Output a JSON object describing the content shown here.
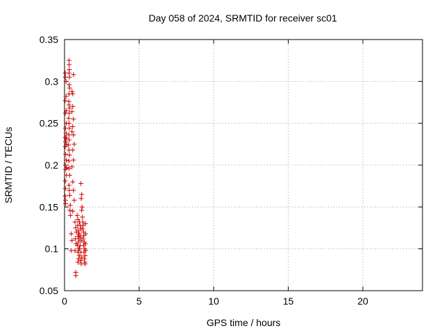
{
  "chart_data": {
    "type": "scatter",
    "title": "Day 058 of 2024, SRMTID for receiver sc01",
    "xlabel": "GPS time / hours",
    "ylabel": "SRMTID / TECUs",
    "xlim": [
      0,
      24
    ],
    "ylim": [
      0.05,
      0.35
    ],
    "xticks": [
      0,
      5,
      10,
      15,
      20
    ],
    "yticks": [
      0.05,
      0.1,
      0.15,
      0.2,
      0.25,
      0.3,
      0.35
    ],
    "grid": true,
    "marker": "+",
    "color": "#cc0000",
    "points": [
      [
        0.05,
        0.31
      ],
      [
        0.06,
        0.305
      ],
      [
        0.04,
        0.277
      ],
      [
        0.05,
        0.262
      ],
      [
        0.06,
        0.244
      ],
      [
        0.05,
        0.233
      ],
      [
        0.07,
        0.228
      ],
      [
        0.05,
        0.222
      ],
      [
        0.08,
        0.213
      ],
      [
        0.06,
        0.2
      ],
      [
        0.08,
        0.195
      ],
      [
        0.05,
        0.181
      ],
      [
        0.06,
        0.172
      ],
      [
        0.04,
        0.163
      ],
      [
        0.06,
        0.158
      ],
      [
        0.07,
        0.154
      ],
      [
        0.1,
        0.3
      ],
      [
        0.1,
        0.282
      ],
      [
        0.11,
        0.265
      ],
      [
        0.12,
        0.25
      ],
      [
        0.11,
        0.238
      ],
      [
        0.12,
        0.232
      ],
      [
        0.13,
        0.225
      ],
      [
        0.12,
        0.206
      ],
      [
        0.14,
        0.197
      ],
      [
        0.13,
        0.188
      ],
      [
        0.3,
        0.325
      ],
      [
        0.31,
        0.32
      ],
      [
        0.32,
        0.314
      ],
      [
        0.3,
        0.31
      ],
      [
        0.33,
        0.305
      ],
      [
        0.31,
        0.296
      ],
      [
        0.34,
        0.292
      ],
      [
        0.3,
        0.285
      ],
      [
        0.29,
        0.276
      ],
      [
        0.3,
        0.272
      ],
      [
        0.33,
        0.268
      ],
      [
        0.31,
        0.262
      ],
      [
        0.28,
        0.256
      ],
      [
        0.3,
        0.25
      ],
      [
        0.32,
        0.244
      ],
      [
        0.29,
        0.236
      ],
      [
        0.31,
        0.23
      ],
      [
        0.27,
        0.224
      ],
      [
        0.3,
        0.218
      ],
      [
        0.33,
        0.212
      ],
      [
        0.29,
        0.205
      ],
      [
        0.31,
        0.196
      ],
      [
        0.34,
        0.188
      ],
      [
        0.3,
        0.176
      ],
      [
        0.32,
        0.17
      ],
      [
        0.35,
        0.164
      ],
      [
        0.38,
        0.152
      ],
      [
        0.36,
        0.146
      ],
      [
        0.4,
        0.14
      ],
      [
        0.5,
        0.288
      ],
      [
        0.55,
        0.285
      ],
      [
        0.6,
        0.308
      ],
      [
        0.55,
        0.27
      ],
      [
        0.5,
        0.264
      ],
      [
        0.6,
        0.255
      ],
      [
        0.55,
        0.246
      ],
      [
        0.5,
        0.24
      ],
      [
        0.6,
        0.236
      ],
      [
        0.65,
        0.225
      ],
      [
        0.55,
        0.218
      ],
      [
        0.6,
        0.206
      ],
      [
        0.5,
        0.198
      ],
      [
        0.55,
        0.18
      ],
      [
        0.6,
        0.17
      ],
      [
        0.65,
        0.158
      ],
      [
        0.55,
        0.145
      ],
      [
        0.45,
        0.118
      ],
      [
        0.5,
        0.11
      ],
      [
        0.45,
        0.098
      ],
      [
        0.7,
        0.132
      ],
      [
        0.75,
        0.125
      ],
      [
        0.8,
        0.12
      ],
      [
        0.72,
        0.112
      ],
      [
        0.78,
        0.106
      ],
      [
        0.7,
        0.098
      ],
      [
        0.75,
        0.072
      ],
      [
        0.76,
        0.068
      ],
      [
        0.85,
        0.14
      ],
      [
        0.9,
        0.135
      ],
      [
        0.88,
        0.128
      ],
      [
        0.92,
        0.122
      ],
      [
        0.95,
        0.118
      ],
      [
        0.9,
        0.115
      ],
      [
        0.98,
        0.112
      ],
      [
        0.93,
        0.108
      ],
      [
        0.87,
        0.104
      ],
      [
        0.96,
        0.1
      ],
      [
        0.91,
        0.096
      ],
      [
        0.99,
        0.092
      ],
      [
        0.94,
        0.088
      ],
      [
        0.9,
        0.084
      ],
      [
        1.0,
        0.132
      ],
      [
        1.05,
        0.128
      ],
      [
        1.1,
        0.124
      ],
      [
        1.02,
        0.118
      ],
      [
        1.08,
        0.114
      ],
      [
        1.12,
        0.11
      ],
      [
        1.05,
        0.104
      ],
      [
        1.0,
        0.1
      ],
      [
        1.1,
        0.096
      ],
      [
        1.15,
        0.09
      ],
      [
        1.08,
        0.086
      ],
      [
        1.12,
        0.082
      ],
      [
        1.1,
        0.178
      ],
      [
        1.15,
        0.165
      ],
      [
        1.12,
        0.16
      ],
      [
        1.18,
        0.15
      ],
      [
        1.15,
        0.146
      ],
      [
        1.2,
        0.138
      ],
      [
        1.22,
        0.132
      ],
      [
        1.25,
        0.128
      ],
      [
        1.2,
        0.124
      ],
      [
        1.28,
        0.12
      ],
      [
        1.3,
        0.116
      ],
      [
        1.25,
        0.112
      ],
      [
        1.32,
        0.108
      ],
      [
        1.28,
        0.104
      ],
      [
        1.35,
        0.1
      ],
      [
        1.3,
        0.096
      ],
      [
        1.38,
        0.092
      ],
      [
        1.33,
        0.088
      ],
      [
        1.36,
        0.084
      ],
      [
        1.4,
        0.13
      ],
      [
        1.42,
        0.118
      ],
      [
        1.4,
        0.106
      ],
      [
        1.42,
        0.098
      ],
      [
        1.38,
        0.082
      ]
    ]
  }
}
